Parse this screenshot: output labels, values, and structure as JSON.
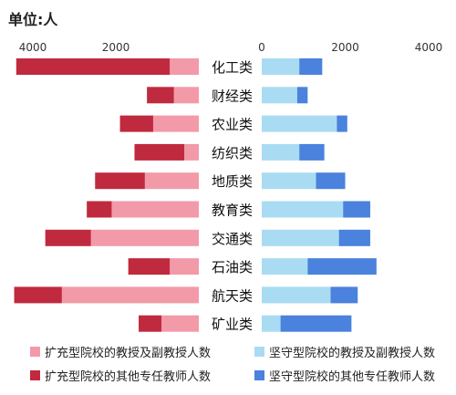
{
  "unit_label": "单位:人",
  "chart_data": {
    "type": "bar",
    "orientation": "horizontal-butterfly",
    "unit": "人",
    "categories": [
      "化工类",
      "财经类",
      "农业类",
      "纺织类",
      "地质类",
      "教育类",
      "交通类",
      "石油类",
      "航天类",
      "矿业类"
    ],
    "left_panel": {
      "xlim": [
        0,
        4000
      ],
      "ticks": [
        4000,
        2000
      ],
      "stacked": true,
      "series": [
        {
          "name": "扩充型院校的教授及副教授人数",
          "color": "#f29aa8",
          "values": [
            700,
            600,
            1100,
            350,
            1300,
            2100,
            2600,
            700,
            3300,
            900
          ]
        },
        {
          "name": "扩充型院校的其他专任教师人数",
          "color": "#c02a3e",
          "values": [
            3700,
            650,
            800,
            1200,
            1200,
            600,
            1100,
            1000,
            1150,
            550
          ]
        }
      ]
    },
    "right_panel": {
      "xlim": [
        0,
        4000
      ],
      "ticks": [
        0,
        2000,
        4000
      ],
      "stacked": true,
      "series": [
        {
          "name": "坚守型院校的教授及副教授人数",
          "color": "#a9dcf2",
          "values": [
            900,
            850,
            1800,
            900,
            1300,
            1950,
            1850,
            1100,
            1650,
            450
          ]
        },
        {
          "name": "坚守型院校的其他专任教师人数",
          "color": "#4a82dd",
          "values": [
            550,
            250,
            250,
            600,
            700,
            650,
            750,
            1650,
            650,
            1700
          ]
        }
      ]
    }
  }
}
